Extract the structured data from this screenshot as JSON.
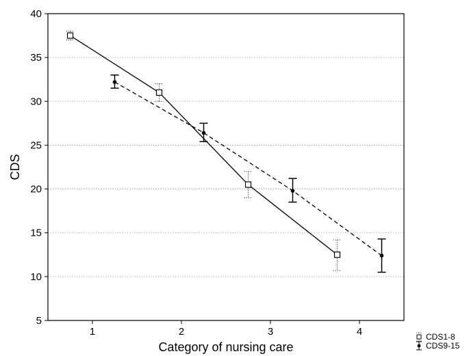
{
  "chart_data": {
    "type": "line",
    "title": "",
    "xlabel": "Category of nursing care",
    "ylabel": "CDS",
    "xlim": [
      0.5,
      4.5
    ],
    "ylim": [
      5,
      40
    ],
    "xticks": [
      1,
      2,
      3,
      4
    ],
    "yticks": [
      5,
      10,
      15,
      20,
      25,
      30,
      35,
      40
    ],
    "grid": "horizontal dotted",
    "legend_position": "bottom-right outside",
    "series": [
      {
        "name": "CDS1-8",
        "x": [
          0.75,
          1.75,
          2.75,
          3.75
        ],
        "y": [
          37.5,
          31.0,
          20.5,
          12.5
        ],
        "err_low": [
          37.0,
          30.0,
          19.0,
          10.7
        ],
        "err_high": [
          38.0,
          32.0,
          22.0,
          14.2
        ],
        "line_style": "solid",
        "marker": "open-square",
        "errorbar_style": "dotted"
      },
      {
        "name": "CDS9-15",
        "x": [
          1.25,
          2.25,
          3.25,
          4.25
        ],
        "y": [
          32.2,
          26.4,
          19.8,
          12.4
        ],
        "err_low": [
          31.5,
          25.4,
          18.5,
          10.5
        ],
        "err_high": [
          33.0,
          27.5,
          21.2,
          14.3
        ],
        "line_style": "dashed",
        "marker": "filled-dot",
        "errorbar_style": "solid"
      }
    ]
  }
}
